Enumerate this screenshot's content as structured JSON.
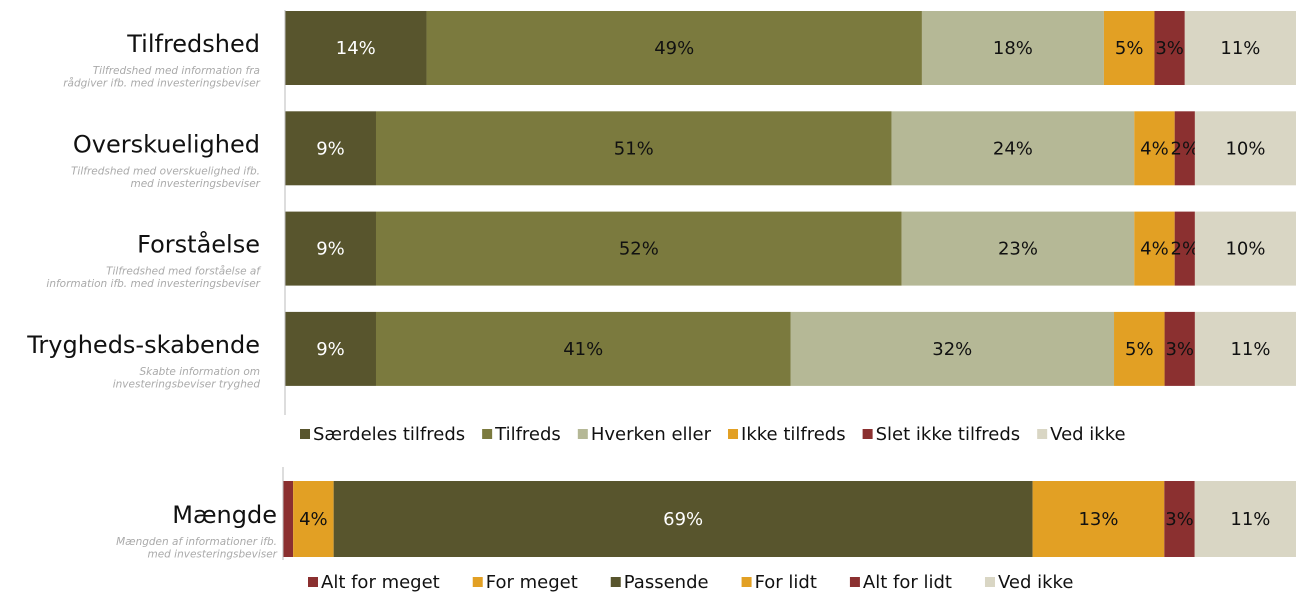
{
  "chart_data": [
    {
      "type": "stacked-bar-horizontal",
      "categories": [
        "Tilfredshed",
        "Overskuelighed",
        "Forståelse",
        "Trygheds-skabende"
      ],
      "descriptions": [
        [
          "Tilfredshed med information fra",
          "rådgiver ifb. med investeringsbeviser"
        ],
        [
          "Tilfredshed med overskuelighed ifb.",
          "med investeringsbeviser"
        ],
        [
          "Tilfredshed med forståelse af",
          "information ifb. med investeringsbeviser"
        ],
        [
          "Skabte information om",
          "investeringsbeviser tryghed"
        ]
      ],
      "xlim": [
        0,
        100
      ],
      "series": [
        {
          "name": "Særdeles tilfreds",
          "color": "#58552d",
          "label_color": "#ffffff",
          "values": [
            14,
            9,
            9,
            9
          ],
          "value_labels": [
            "14%",
            "9%",
            "9%",
            "9%"
          ]
        },
        {
          "name": "Tilfreds",
          "color": "#7b7a3e",
          "label_color": "#111111",
          "values": [
            49,
            51,
            52,
            41
          ],
          "value_labels": [
            "49%",
            "51%",
            "52%",
            "41%"
          ]
        },
        {
          "name": "Hverken eller",
          "color": "#b5b896",
          "label_color": "#111111",
          "values": [
            18,
            24,
            23,
            32
          ],
          "value_labels": [
            "18%",
            "24%",
            "23%",
            "32%"
          ]
        },
        {
          "name": "Ikke tilfreds",
          "color": "#e2a024",
          "label_color": "#111111",
          "values": [
            5,
            4,
            4,
            5
          ],
          "value_labels": [
            "5%",
            "4%",
            "4%",
            "5%"
          ]
        },
        {
          "name": "Slet ikke tilfreds",
          "color": "#8b3030",
          "label_color": "#111111",
          "values": [
            3,
            2,
            2,
            3
          ],
          "value_labels": [
            "3%",
            "2%",
            "2%",
            "3%"
          ]
        },
        {
          "name": "Ved ikke",
          "color": "#d9d6c4",
          "label_color": "#111111",
          "values": [
            11,
            10,
            10,
            11
          ],
          "value_labels": [
            "11%",
            "10%",
            "10%",
            "11%"
          ]
        }
      ]
    },
    {
      "type": "stacked-bar-horizontal",
      "categories": [
        "Mængde"
      ],
      "descriptions": [
        [
          "Mængden af informationer ifb.",
          "med investeringsbeviser"
        ]
      ],
      "xlim": [
        0,
        100
      ],
      "series": [
        {
          "name": "Alt for meget",
          "color": "#8b3030",
          "label_color": "#111111",
          "values": [
            1
          ],
          "value_labels": [
            null
          ]
        },
        {
          "name": "For meget",
          "color": "#e2a024",
          "label_color": "#111111",
          "values": [
            4
          ],
          "value_labels": [
            "4%"
          ]
        },
        {
          "name": "Passende",
          "color": "#58552d",
          "label_color": "#ffffff",
          "values": [
            69
          ],
          "value_labels": [
            "69%"
          ]
        },
        {
          "name": "For lidt",
          "color": "#e2a024",
          "label_color": "#111111",
          "values": [
            13
          ],
          "value_labels": [
            "13%"
          ]
        },
        {
          "name": "Alt for lidt",
          "color": "#8b3030",
          "label_color": "#111111",
          "values": [
            3
          ],
          "value_labels": [
            "3%"
          ]
        },
        {
          "name": "Ved ikke",
          "color": "#d9d6c4",
          "label_color": "#111111",
          "values": [
            11
          ],
          "value_labels": [
            "11%"
          ]
        }
      ]
    }
  ]
}
